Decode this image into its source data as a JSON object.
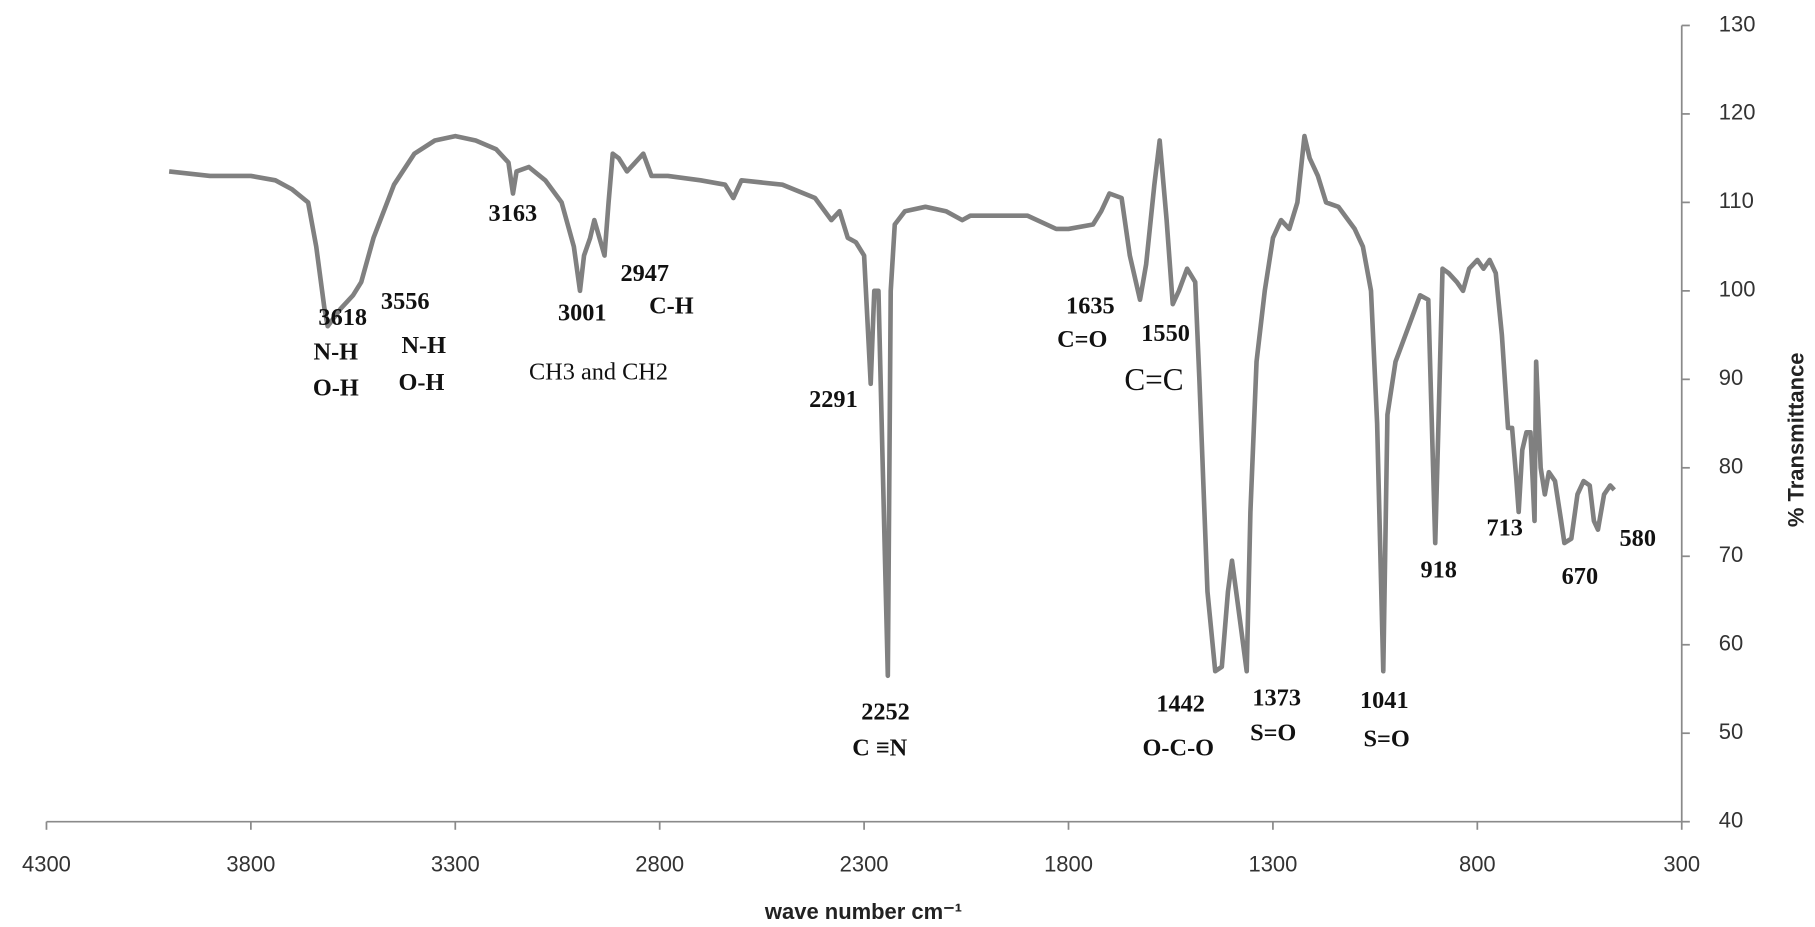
{
  "chart_data": {
    "type": "line",
    "x_label": "wave number cm⁻¹",
    "y_label": "% Transmittance",
    "xlim": [
      4300,
      300
    ],
    "xticks": [
      4300,
      3800,
      3300,
      2800,
      2300,
      1800,
      1300,
      800,
      300
    ],
    "ylim": [
      40,
      130
    ],
    "yticks": [
      40,
      50,
      60,
      70,
      80,
      90,
      100,
      110,
      120,
      130
    ],
    "grid": false,
    "series": [
      {
        "color": "#808080",
        "x": [
          4000,
          3900,
          3800,
          3740,
          3700,
          3660,
          3640,
          3620,
          3612,
          3580,
          3550,
          3530,
          3500,
          3450,
          3400,
          3350,
          3300,
          3250,
          3200,
          3170,
          3159,
          3150,
          3120,
          3080,
          3040,
          3010,
          2995,
          2985,
          2970,
          2960,
          2935,
          2925,
          2915,
          2900,
          2880,
          2860,
          2840,
          2820,
          2780,
          2700,
          2640,
          2620,
          2600,
          2500,
          2420,
          2380,
          2360,
          2340,
          2320,
          2300,
          2284,
          2275,
          2265,
          2242,
          2235,
          2225,
          2200,
          2150,
          2100,
          2060,
          2040,
          1900,
          1830,
          1800,
          1740,
          1720,
          1700,
          1670,
          1650,
          1625,
          1610,
          1590,
          1577,
          1560,
          1545,
          1530,
          1510,
          1490,
          1480,
          1470,
          1460,
          1441,
          1425,
          1410,
          1400,
          1390,
          1364,
          1355,
          1340,
          1320,
          1300,
          1280,
          1260,
          1240,
          1223,
          1210,
          1190,
          1170,
          1140,
          1100,
          1080,
          1060,
          1045,
          1030,
          1020,
          1000,
          960,
          940,
          920,
          903,
          895,
          885,
          870,
          850,
          835,
          820,
          800,
          785,
          770,
          755,
          740,
          725,
          715,
          705,
          699,
          690,
          680,
          670,
          660,
          656,
          645,
          635,
          625,
          610,
          595,
          587,
          570,
          555,
          540,
          525,
          515,
          505,
          490,
          475,
          465
        ],
        "values": [
          113.5,
          113,
          113,
          112.5,
          111.5,
          110,
          105,
          98,
          96,
          98,
          99.5,
          101,
          106,
          112,
          115.5,
          117,
          117.5,
          117,
          116,
          114.5,
          111,
          113.5,
          114,
          112.5,
          110,
          105,
          100,
          104,
          106,
          108,
          104,
          110,
          115.5,
          115,
          113.5,
          114.5,
          115.5,
          113,
          113,
          112.5,
          112,
          110.5,
          112.5,
          112,
          110.5,
          108,
          109,
          106,
          105.5,
          104,
          89.5,
          100,
          100,
          56.5,
          100,
          107.5,
          109,
          109.5,
          109,
          108,
          108.5,
          108.5,
          107,
          107,
          107.5,
          109,
          111,
          110.5,
          104,
          99,
          103,
          112,
          117,
          108,
          98.5,
          100,
          102.5,
          101,
          90,
          78,
          66,
          57,
          57.5,
          66,
          69.5,
          66,
          57,
          75,
          92,
          100,
          106,
          108,
          107,
          110,
          117.5,
          115,
          113,
          110,
          109.5,
          107,
          105,
          100,
          85,
          57,
          86,
          92,
          97,
          99.5,
          99,
          71.5,
          85,
          102.5,
          102,
          101,
          100,
          102.5,
          103.5,
          102.5,
          103.5,
          102,
          95,
          84.5,
          84.5,
          79,
          75,
          82,
          84,
          84,
          74,
          92,
          80,
          77,
          79.5,
          78.5,
          74,
          71.5,
          72,
          77,
          78.5,
          78,
          74,
          73,
          77,
          78,
          77.5
        ]
      }
    ],
    "annotations": [
      "3618",
      "N-H",
      "O-H",
      "3556",
      "N-H",
      "O-H",
      "3163",
      "3001",
      "2947",
      "C-H",
      "CH3 and CH2",
      "2291",
      "2252",
      "C ≡N",
      "1635",
      "C=O",
      "1550",
      "C=C",
      "1442",
      "O-C-O",
      "1373",
      "S=O",
      "1041",
      "S=O",
      "918",
      "713",
      "670",
      "580"
    ]
  }
}
